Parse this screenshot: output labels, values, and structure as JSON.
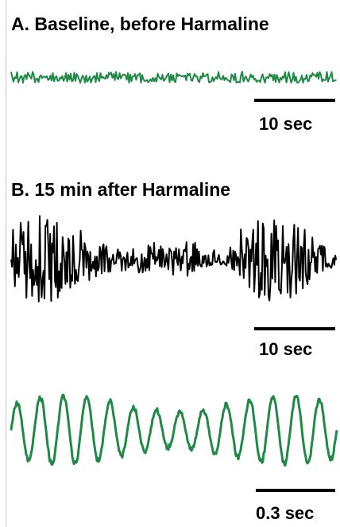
{
  "panels": {
    "a": {
      "title": "A. Baseline, before Harmaline",
      "scale_label": "10 sec"
    },
    "b": {
      "title": "B. 15 min after Harmaline",
      "scale_label": "10 sec"
    },
    "c": {
      "title": "",
      "scale_label": "0.3 sec"
    }
  },
  "colors": {
    "green": "#1f8a45",
    "black": "#000000"
  },
  "chart_data": [
    {
      "type": "line",
      "title": "A. Baseline, before Harmaline",
      "xlabel": "",
      "ylabel": "",
      "grid": false,
      "series": [
        {
          "color": "#1f8a45",
          "description_amplitude": "low",
          "duration_sec": 29
        }
      ],
      "scale_bar": "10 sec"
    },
    {
      "type": "line",
      "title": "B. 15 min after Harmaline",
      "xlabel": "",
      "ylabel": "",
      "grid": false,
      "series": [
        {
          "color": "#000000",
          "description_amplitude": "high",
          "duration_sec": 29
        }
      ],
      "scale_bar": "10 sec"
    },
    {
      "type": "line",
      "title": "",
      "xlabel": "",
      "ylabel": "",
      "grid": false,
      "series": [
        {
          "color": "#1f8a45",
          "peaks_count": 14,
          "duration_sec": 1.2
        }
      ],
      "scale_bar": "0.3 sec"
    }
  ]
}
